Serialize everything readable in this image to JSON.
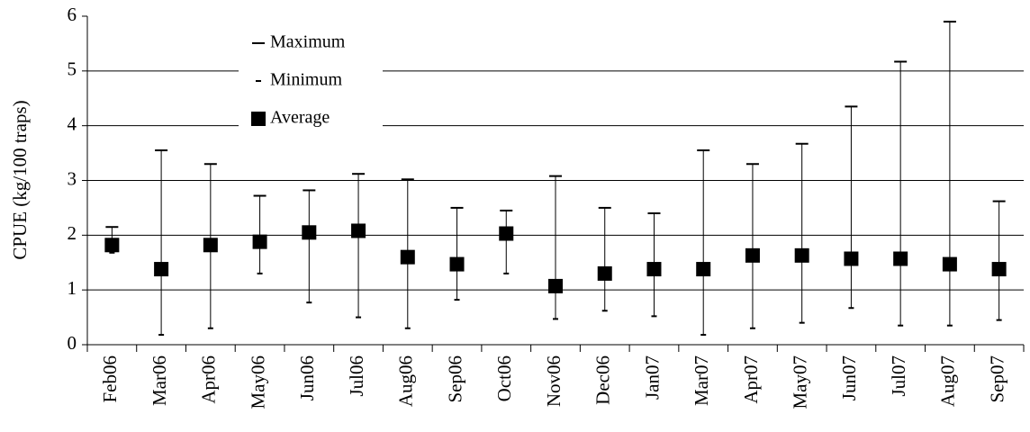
{
  "chart_data": {
    "type": "high-low-average",
    "y_label": "CPUE (kg/100 traps)",
    "categories": [
      "Feb06",
      "Mar06",
      "Apr06",
      "May06",
      "Jun06",
      "Jul06",
      "Aug06",
      "Sep06",
      "Oct06",
      "Nov06",
      "Dec06",
      "Jan07",
      "Mar07",
      "Apr07",
      "May07",
      "Jun07",
      "Jul07",
      "Aug07",
      "Sep07"
    ],
    "series": [
      {
        "name": "Maximum",
        "color": "#000000",
        "values": [
          2.15,
          3.55,
          3.3,
          2.72,
          2.82,
          3.12,
          3.02,
          2.5,
          2.45,
          3.08,
          2.5,
          2.4,
          3.55,
          3.3,
          3.67,
          4.35,
          5.17,
          5.9,
          2.62
        ]
      },
      {
        "name": "Minimum",
        "color": "#000000",
        "values": [
          1.68,
          0.18,
          0.3,
          1.3,
          0.77,
          0.5,
          0.3,
          0.82,
          1.3,
          0.47,
          0.62,
          0.52,
          0.18,
          0.3,
          0.4,
          0.67,
          0.35,
          0.35,
          0.45
        ]
      },
      {
        "name": "Average",
        "color": "#000000",
        "values": [
          1.82,
          1.38,
          1.82,
          1.88,
          2.05,
          2.08,
          1.6,
          1.47,
          2.03,
          1.07,
          1.3,
          1.38,
          1.38,
          1.63,
          1.63,
          1.57,
          1.57,
          1.47,
          1.38
        ]
      }
    ],
    "ylim": [
      0,
      6
    ],
    "yticks": [
      0,
      1,
      2,
      3,
      4,
      5,
      6
    ],
    "grid": true
  }
}
